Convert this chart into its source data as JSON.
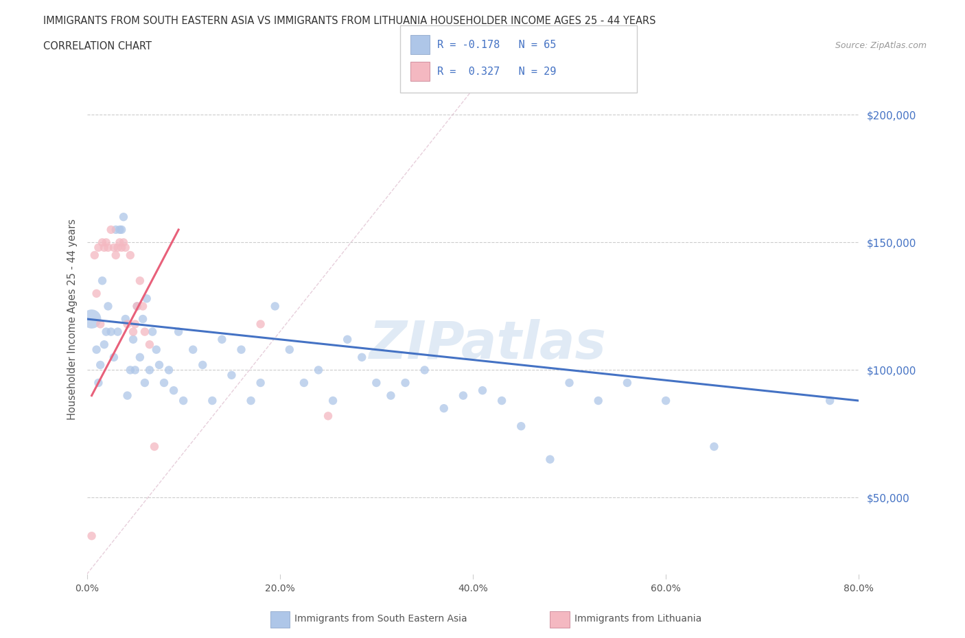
{
  "title_line1": "IMMIGRANTS FROM SOUTH EASTERN ASIA VS IMMIGRANTS FROM LITHUANIA HOUSEHOLDER INCOME AGES 25 - 44 YEARS",
  "title_line2": "CORRELATION CHART",
  "source_text": "Source: ZipAtlas.com",
  "ylabel": "Householder Income Ages 25 - 44 years",
  "xlim": [
    0.0,
    0.8
  ],
  "ylim": [
    20000,
    220000
  ],
  "xtick_labels": [
    "0.0%",
    "20.0%",
    "40.0%",
    "60.0%",
    "80.0%"
  ],
  "xtick_values": [
    0.0,
    0.2,
    0.4,
    0.6,
    0.8
  ],
  "ytick_labels": [
    "$200,000",
    "$150,000",
    "$100,000",
    "$50,000"
  ],
  "ytick_values": [
    200000,
    150000,
    100000,
    50000
  ],
  "color_sea": "#aec6e8",
  "color_sea_line": "#4472c4",
  "color_lith": "#f4b8c1",
  "color_lith_line": "#e8607a",
  "color_diag": "#d0d0d0",
  "watermark": "ZIPatlas",
  "sea_x": [
    0.005,
    0.01,
    0.012,
    0.014,
    0.016,
    0.018,
    0.02,
    0.022,
    0.025,
    0.028,
    0.03,
    0.032,
    0.034,
    0.036,
    0.038,
    0.04,
    0.042,
    0.045,
    0.048,
    0.05,
    0.052,
    0.055,
    0.058,
    0.06,
    0.062,
    0.065,
    0.068,
    0.072,
    0.075,
    0.08,
    0.085,
    0.09,
    0.095,
    0.1,
    0.11,
    0.12,
    0.13,
    0.14,
    0.15,
    0.16,
    0.17,
    0.18,
    0.195,
    0.21,
    0.225,
    0.24,
    0.255,
    0.27,
    0.285,
    0.3,
    0.315,
    0.33,
    0.35,
    0.37,
    0.39,
    0.41,
    0.43,
    0.45,
    0.48,
    0.5,
    0.53,
    0.56,
    0.6,
    0.65,
    0.77
  ],
  "sea_y": [
    120000,
    108000,
    95000,
    102000,
    135000,
    110000,
    115000,
    125000,
    115000,
    105000,
    155000,
    115000,
    155000,
    155000,
    160000,
    120000,
    90000,
    100000,
    112000,
    100000,
    125000,
    105000,
    120000,
    95000,
    128000,
    100000,
    115000,
    108000,
    102000,
    95000,
    100000,
    92000,
    115000,
    88000,
    108000,
    102000,
    88000,
    112000,
    98000,
    108000,
    88000,
    95000,
    125000,
    108000,
    95000,
    100000,
    88000,
    112000,
    105000,
    95000,
    90000,
    95000,
    100000,
    85000,
    90000,
    92000,
    88000,
    78000,
    65000,
    95000,
    88000,
    95000,
    88000,
    70000,
    88000
  ],
  "sea_size": [
    400,
    80,
    80,
    80,
    80,
    80,
    80,
    80,
    80,
    80,
    80,
    80,
    80,
    80,
    80,
    80,
    80,
    80,
    80,
    80,
    80,
    80,
    80,
    80,
    80,
    80,
    80,
    80,
    80,
    80,
    80,
    80,
    80,
    80,
    80,
    80,
    80,
    80,
    80,
    80,
    80,
    80,
    80,
    80,
    80,
    80,
    80,
    80,
    80,
    80,
    80,
    80,
    80,
    80,
    80,
    80,
    80,
    80,
    80,
    80,
    80,
    80,
    80,
    80,
    80
  ],
  "lith_x": [
    0.005,
    0.008,
    0.01,
    0.012,
    0.014,
    0.016,
    0.018,
    0.02,
    0.022,
    0.025,
    0.028,
    0.03,
    0.032,
    0.034,
    0.036,
    0.038,
    0.04,
    0.042,
    0.045,
    0.048,
    0.05,
    0.052,
    0.055,
    0.058,
    0.06,
    0.065,
    0.07,
    0.18,
    0.25
  ],
  "lith_y": [
    35000,
    145000,
    130000,
    148000,
    118000,
    150000,
    148000,
    150000,
    148000,
    155000,
    148000,
    145000,
    148000,
    150000,
    148000,
    150000,
    148000,
    118000,
    145000,
    115000,
    118000,
    125000,
    135000,
    125000,
    115000,
    110000,
    70000,
    118000,
    82000
  ],
  "lith_size": [
    80,
    80,
    80,
    80,
    80,
    80,
    80,
    80,
    80,
    80,
    80,
    80,
    80,
    80,
    80,
    80,
    80,
    80,
    80,
    80,
    80,
    80,
    80,
    80,
    80,
    80,
    80,
    80,
    80
  ],
  "sea_line_x": [
    0.0,
    0.8
  ],
  "sea_line_y": [
    120000,
    88000
  ],
  "lith_line_x": [
    0.005,
    0.095
  ],
  "lith_line_y": [
    90000,
    155000
  ],
  "diag_line_x": [
    0.0,
    0.4
  ],
  "diag_line_y": [
    20000,
    210000
  ]
}
